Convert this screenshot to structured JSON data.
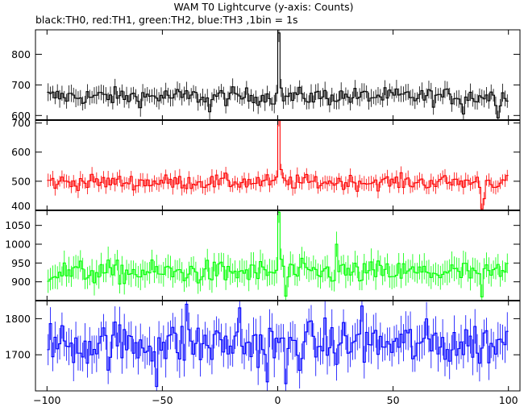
{
  "chart_data": {
    "type": "line",
    "title": "WAM T0 Lightcurve (y-axis: Counts)",
    "subtitle": "black:TH0, red:TH1, green:TH2, blue:TH3 ,1bin = 1s",
    "xlim": [
      -105,
      105
    ],
    "x_ticks": [
      -100,
      -50,
      0,
      50,
      100
    ],
    "x_tick_labels": [
      "−100",
      "−50",
      "0",
      "50",
      "100"
    ],
    "x": {
      "start": -100,
      "end": 99,
      "step": 1
    },
    "grid": false,
    "panels": [
      {
        "name": "TH0",
        "color": "#000000",
        "ylim": [
          585,
          880
        ],
        "y_ticks": [
          600,
          700,
          800
        ],
        "baseline": 662,
        "noise": 20,
        "errbar": 25,
        "peaks": [
          [
            0,
            870
          ],
          [
            1,
            690
          ]
        ],
        "dips": [
          [
            95,
            592
          ],
          [
            -30,
            612
          ],
          [
            80,
            605
          ]
        ]
      },
      {
        "name": "TH1",
        "color": "#ff0000",
        "ylim": [
          400,
          710
        ],
        "y_ticks": [
          400,
          500,
          600,
          700
        ],
        "baseline": 497,
        "noise": 18,
        "errbar": 22,
        "peaks": [
          [
            0,
            710
          ],
          [
            1,
            540
          ]
        ],
        "dips": [
          [
            88,
            405
          ],
          [
            89,
            440
          ]
        ]
      },
      {
        "name": "TH2",
        "color": "#00ff00",
        "ylim": [
          850,
          1090
        ],
        "y_ticks": [
          900,
          950,
          1000,
          1050
        ],
        "baseline": 925,
        "noise": 22,
        "errbar": 30,
        "peaks": [
          [
            0,
            1085
          ],
          [
            1,
            960
          ],
          [
            25,
            1000
          ]
        ],
        "dips": [
          [
            88,
            860
          ],
          [
            3,
            862
          ]
        ]
      },
      {
        "name": "TH3",
        "color": "#0000ff",
        "ylim": [
          1600,
          1850
        ],
        "y_ticks": [
          1700,
          1800
        ],
        "baseline": 1730,
        "noise": 45,
        "errbar": 45,
        "peaks": [
          [
            -40,
            1840
          ],
          [
            -17,
            1830
          ],
          [
            36,
            1835
          ]
        ],
        "dips": [
          [
            -53,
            1612
          ],
          [
            -5,
            1625
          ],
          [
            3,
            1620
          ]
        ]
      }
    ]
  }
}
